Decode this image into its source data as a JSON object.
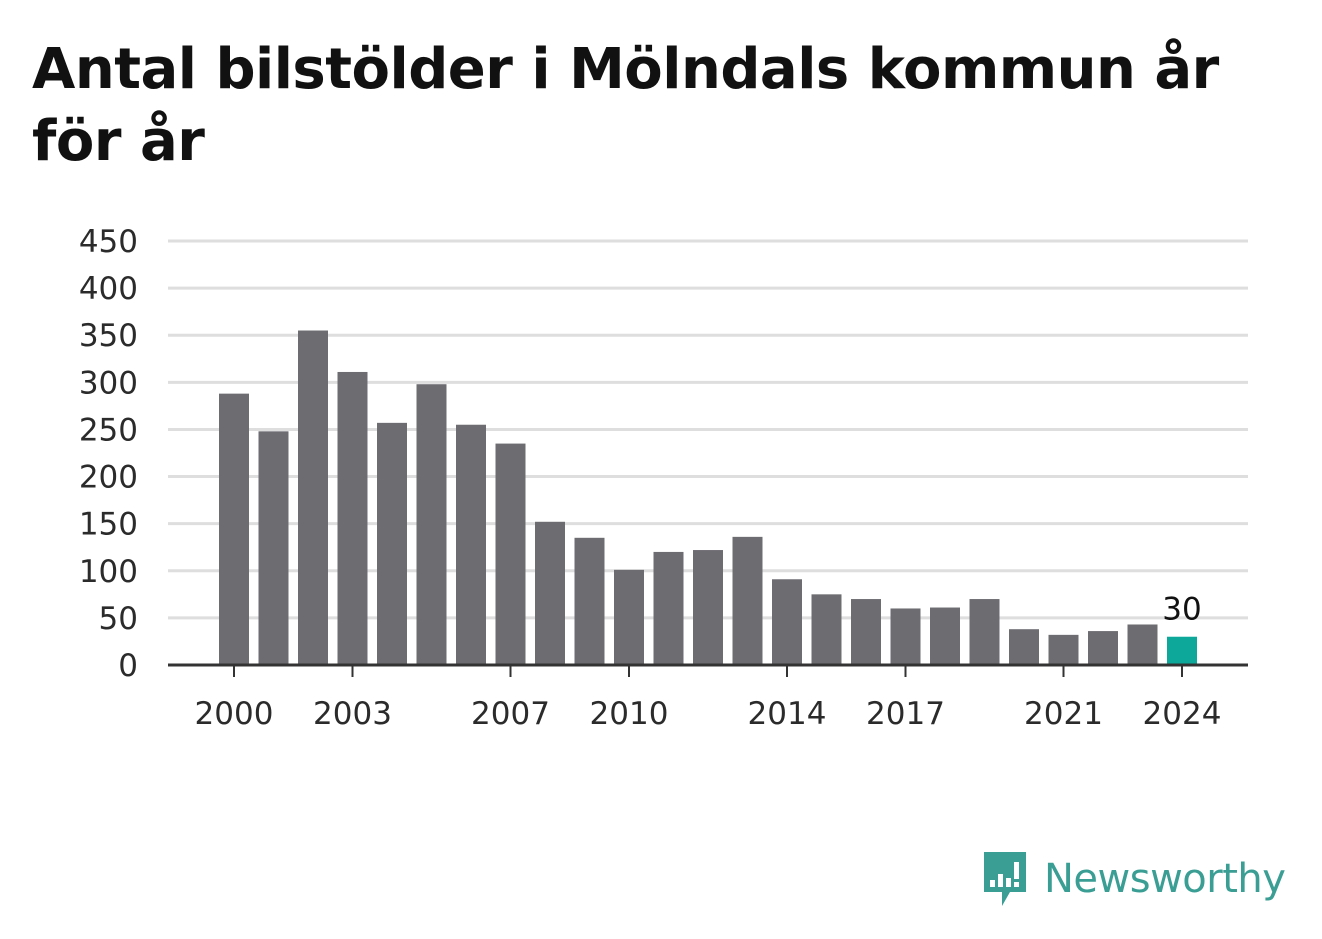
{
  "header": {
    "title": "Antal bilstölder i Mölndals kommun år för år"
  },
  "chart_data": {
    "type": "bar",
    "categories": [
      "2000",
      "2001",
      "2002",
      "2003",
      "2004",
      "2005",
      "2006",
      "2007",
      "2008",
      "2009",
      "2010",
      "2011",
      "2012",
      "2013",
      "2014",
      "2015",
      "2016",
      "2017",
      "2018",
      "2019",
      "2020",
      "2021",
      "2022",
      "2023",
      "2024"
    ],
    "values": [
      288,
      248,
      355,
      311,
      257,
      298,
      255,
      235,
      152,
      135,
      101,
      120,
      122,
      136,
      91,
      75,
      70,
      60,
      61,
      70,
      38,
      32,
      36,
      43,
      30
    ],
    "x_tick_labels": [
      "2000",
      "2003",
      "2007",
      "2010",
      "2014",
      "2017",
      "2021",
      "2024"
    ],
    "y_ticks": [
      0,
      50,
      100,
      150,
      200,
      250,
      300,
      350,
      400,
      450
    ],
    "ylim": [
      0,
      450
    ],
    "grid": true,
    "highlight": {
      "category": "2024",
      "label": "30"
    },
    "colors": {
      "bar": "#6d6c71",
      "highlight": "#0ea89a",
      "grid": "#dedede",
      "axis": "#333333"
    }
  },
  "branding": {
    "logo_text": "Newsworthy",
    "logo_icon": "chart-bubble-icon",
    "logo_color": "#3a9e94"
  }
}
